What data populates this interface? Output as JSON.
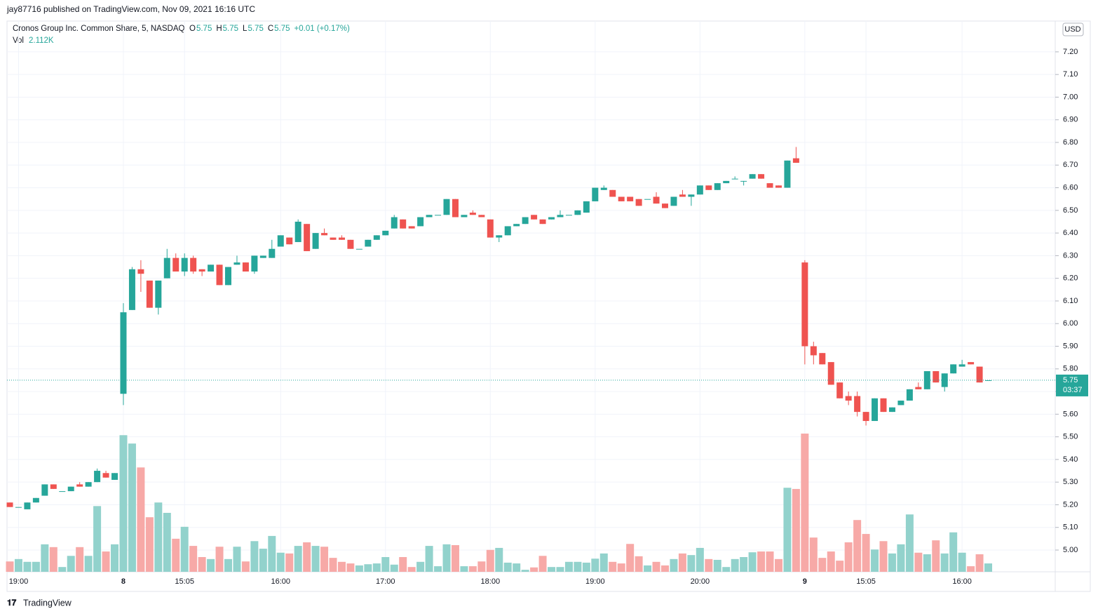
{
  "publisher": "jay87716 published on TradingView.com, Nov 09, 2021 16:16 UTC",
  "brand": "TradingView",
  "chart_data": {
    "type": "candlestick",
    "title": "Cronos Group Inc. Common Share, 5, NASDAQ",
    "ohlc_legend": [
      {
        "label": "O",
        "value": 5.75
      },
      {
        "label": "H",
        "value": 5.75
      },
      {
        "label": "L",
        "value": 5.75
      },
      {
        "label": "C",
        "value": 5.75
      }
    ],
    "change": "+0.01 (+0.17%)",
    "volume_legend": {
      "label": "Vol",
      "value": "2.112K"
    },
    "currency": "USD",
    "last_price": 5.75,
    "countdown": "03:37",
    "up_color": "#26a69a",
    "down_color": "#ef5350",
    "volume_up_color": "#92d2cc",
    "volume_down_color": "#f7a9a7",
    "grid": true,
    "categories": [
      null,
      "19:00",
      null,
      null,
      null,
      null,
      null,
      null,
      null,
      null,
      null,
      null,
      null,
      "8",
      null,
      null,
      null,
      null,
      null,
      null,
      "15:05",
      null,
      null,
      null,
      null,
      null,
      null,
      null,
      null,
      null,
      null,
      "16:00",
      null,
      null,
      null,
      null,
      null,
      null,
      null,
      null,
      null,
      null,
      null,
      "17:00",
      null,
      null,
      null,
      null,
      null,
      null,
      null,
      null,
      null,
      null,
      null,
      "18:00",
      null,
      null,
      null,
      null,
      null,
      null,
      null,
      null,
      null,
      null,
      null,
      "19:00",
      null,
      null,
      null,
      null,
      null,
      null,
      null,
      null,
      null,
      null,
      null,
      "20:00",
      null,
      null,
      null,
      null,
      null,
      null,
      null,
      null,
      null,
      null,
      null,
      "9",
      null,
      null,
      null,
      null,
      null,
      null,
      "15:05",
      null,
      null,
      null,
      null,
      null,
      null,
      null,
      null,
      null,
      null,
      "16:00",
      null,
      null,
      null
    ],
    "open": [
      5.21,
      5.19,
      5.18,
      5.21,
      5.24,
      5.29,
      5.26,
      5.26,
      5.29,
      5.28,
      5.3,
      5.34,
      5.31,
      5.69,
      6.06,
      6.24,
      6.19,
      6.07,
      6.2,
      6.29,
      6.23,
      6.29,
      6.24,
      6.23,
      6.26,
      6.17,
      6.26,
      6.27,
      6.23,
      6.29,
      6.29,
      6.34,
      6.38,
      6.36,
      6.44,
      6.33,
      6.4,
      6.38,
      6.38,
      6.37,
      6.33,
      6.34,
      6.37,
      6.39,
      6.42,
      6.46,
      6.43,
      6.43,
      6.47,
      6.48,
      6.48,
      6.55,
      6.47,
      6.49,
      6.48,
      6.46,
      6.38,
      6.39,
      6.43,
      6.44,
      6.48,
      6.46,
      6.46,
      6.47,
      6.48,
      6.48,
      6.49,
      6.54,
      6.59,
      6.59,
      6.56,
      6.56,
      6.55,
      6.55,
      6.56,
      6.53,
      6.52,
      6.57,
      6.56,
      6.57,
      6.61,
      6.59,
      6.62,
      6.64,
      6.63,
      6.64,
      6.66,
      6.62,
      6.61,
      6.6,
      6.73,
      6.27,
      5.9,
      5.87,
      5.83,
      5.74,
      5.68,
      5.68,
      5.61,
      5.57,
      5.67,
      5.61,
      5.64,
      5.66,
      5.72,
      5.71,
      5.79,
      5.72,
      5.78,
      5.81,
      5.83,
      5.81,
      5.75
    ],
    "high": [
      5.21,
      5.19,
      5.21,
      5.23,
      5.29,
      5.29,
      5.26,
      5.28,
      5.3,
      5.3,
      5.36,
      5.35,
      5.34,
      6.09,
      6.25,
      6.28,
      6.19,
      6.19,
      6.33,
      6.31,
      6.31,
      6.3,
      6.24,
      6.26,
      6.26,
      6.25,
      6.3,
      6.27,
      6.3,
      6.3,
      6.37,
      6.39,
      6.38,
      6.46,
      6.44,
      6.4,
      6.42,
      6.38,
      6.39,
      6.37,
      6.33,
      6.37,
      6.39,
      6.41,
      6.48,
      6.46,
      6.43,
      6.47,
      6.48,
      6.48,
      6.55,
      6.55,
      6.48,
      6.5,
      6.48,
      6.46,
      6.39,
      6.43,
      6.44,
      6.47,
      6.48,
      6.46,
      6.47,
      6.5,
      6.48,
      6.5,
      6.54,
      6.6,
      6.61,
      6.59,
      6.56,
      6.56,
      6.55,
      6.55,
      6.58,
      6.53,
      6.56,
      6.59,
      6.57,
      6.61,
      6.61,
      6.62,
      6.63,
      6.65,
      6.63,
      6.66,
      6.66,
      6.62,
      6.61,
      6.72,
      6.78,
      6.28,
      5.92,
      5.87,
      5.83,
      5.74,
      5.7,
      5.7,
      5.61,
      5.67,
      5.67,
      5.63,
      5.66,
      5.71,
      5.74,
      5.79,
      5.79,
      5.78,
      5.82,
      5.84,
      5.83,
      5.81,
      5.75
    ],
    "low": [
      5.19,
      5.19,
      5.18,
      5.21,
      5.24,
      5.27,
      5.26,
      5.26,
      5.28,
      5.28,
      5.3,
      5.32,
      5.31,
      5.64,
      6.06,
      6.14,
      6.07,
      6.04,
      6.2,
      6.23,
      6.21,
      6.22,
      6.21,
      6.23,
      6.17,
      6.17,
      6.26,
      6.23,
      6.22,
      6.29,
      6.29,
      6.34,
      6.35,
      6.36,
      6.32,
      6.33,
      6.39,
      6.37,
      6.37,
      6.33,
      6.33,
      6.34,
      6.37,
      6.39,
      6.42,
      6.42,
      6.42,
      6.43,
      6.47,
      6.48,
      6.48,
      6.47,
      6.47,
      6.48,
      6.47,
      6.38,
      6.36,
      6.39,
      6.43,
      6.44,
      6.46,
      6.44,
      6.46,
      6.47,
      6.48,
      6.48,
      6.49,
      6.54,
      6.59,
      6.56,
      6.54,
      6.54,
      6.52,
      6.55,
      6.53,
      6.51,
      6.52,
      6.56,
      6.52,
      6.57,
      6.59,
      6.59,
      6.62,
      6.64,
      6.61,
      6.64,
      6.64,
      6.6,
      6.6,
      6.6,
      6.71,
      5.82,
      5.82,
      5.82,
      5.73,
      5.67,
      5.64,
      5.59,
      5.55,
      5.57,
      5.61,
      5.61,
      5.64,
      5.66,
      5.71,
      5.71,
      5.74,
      5.7,
      5.78,
      5.81,
      5.82,
      5.74,
      5.75
    ],
    "close": [
      5.19,
      5.19,
      5.21,
      5.23,
      5.29,
      5.27,
      5.26,
      5.28,
      5.28,
      5.3,
      5.35,
      5.32,
      5.34,
      6.05,
      6.24,
      6.22,
      6.07,
      6.19,
      6.29,
      6.23,
      6.29,
      6.23,
      6.23,
      6.26,
      6.17,
      6.25,
      6.27,
      6.23,
      6.3,
      6.3,
      6.33,
      6.39,
      6.35,
      6.45,
      6.32,
      6.4,
      6.39,
      6.37,
      6.37,
      6.33,
      6.33,
      6.37,
      6.39,
      6.41,
      6.47,
      6.42,
      6.42,
      6.47,
      6.48,
      6.48,
      6.55,
      6.47,
      6.48,
      6.48,
      6.47,
      6.38,
      6.39,
      6.43,
      6.44,
      6.47,
      6.46,
      6.44,
      6.47,
      6.48,
      6.48,
      6.5,
      6.54,
      6.6,
      6.6,
      6.56,
      6.54,
      6.54,
      6.52,
      6.55,
      6.53,
      6.51,
      6.56,
      6.56,
      6.57,
      6.61,
      6.59,
      6.62,
      6.63,
      6.64,
      6.63,
      6.66,
      6.64,
      6.6,
      6.6,
      6.72,
      6.71,
      5.9,
      5.86,
      5.82,
      5.73,
      5.67,
      5.66,
      5.61,
      5.57,
      5.67,
      5.61,
      5.63,
      5.66,
      5.71,
      5.71,
      5.79,
      5.74,
      5.78,
      5.82,
      5.82,
      5.82,
      5.74,
      5.75
    ],
    "volume": [
      2.6,
      3.2,
      2.5,
      2.5,
      6.9,
      6.2,
      1.2,
      4.0,
      6.2,
      4.0,
      16.5,
      5.1,
      6.9,
      34.3,
      32.2,
      26.2,
      13.7,
      17.4,
      14.8,
      8.3,
      11.3,
      6.5,
      3.7,
      3.2,
      6.3,
      3.2,
      6.3,
      2.6,
      7.7,
      5.8,
      9.0,
      4.8,
      4.6,
      6.5,
      7.4,
      6.5,
      6.3,
      3.5,
      2.5,
      2.1,
      1.6,
      1.9,
      2.1,
      3.7,
      1.8,
      3.7,
      1.2,
      2.5,
      6.5,
      1.4,
      6.9,
      6.7,
      1.4,
      1.4,
      2.6,
      5.5,
      6.0,
      2.3,
      2.1,
      0.5,
      1.1,
      4.0,
      1.2,
      1.2,
      2.5,
      2.5,
      2.3,
      3.3,
      4.6,
      2.5,
      2.1,
      7.0,
      3.9,
      1.6,
      2.5,
      1.6,
      3.2,
      4.6,
      4.2,
      6.0,
      3.2,
      3.0,
      1.2,
      3.2,
      3.7,
      4.9,
      5.1,
      5.1,
      3.2,
      21.1,
      20.8,
      34.7,
      8.6,
      3.5,
      5.1,
      2.8,
      7.4,
      13.0,
      9.5,
      5.6,
      7.7,
      4.6,
      6.9,
      14.4,
      4.8,
      4.4,
      7.9,
      4.6,
      9.9,
      4.8,
      1.4,
      4.4,
      2.1
    ],
    "ylim": [
      4.904,
      7.336
    ],
    "yticks": [
      {
        "value": 5.0,
        "label": "5.00"
      },
      {
        "value": 5.1,
        "label": "5.10"
      },
      {
        "value": 5.2,
        "label": "5.20"
      },
      {
        "value": 5.3,
        "label": "5.30"
      },
      {
        "value": 5.4,
        "label": "5.40"
      },
      {
        "value": 5.5,
        "label": "5.50"
      },
      {
        "value": 5.6,
        "label": "5.60"
      },
      {
        "value": 5.7,
        "label": "5.70"
      },
      {
        "value": 5.8,
        "label": "5.80"
      },
      {
        "value": 5.9,
        "label": "5.90"
      },
      {
        "value": 6.0,
        "label": "6.00"
      },
      {
        "value": 6.1,
        "label": "6.10"
      },
      {
        "value": 6.2,
        "label": "6.20"
      },
      {
        "value": 6.3,
        "label": "6.30"
      },
      {
        "value": 6.4,
        "label": "6.40"
      },
      {
        "value": 6.5,
        "label": "6.50"
      },
      {
        "value": 6.6,
        "label": "6.60"
      },
      {
        "value": 6.7,
        "label": "6.70"
      },
      {
        "value": 6.8,
        "label": "6.80"
      },
      {
        "value": 6.9,
        "label": "6.90"
      },
      {
        "value": 7.0,
        "label": "7.00"
      },
      {
        "value": 7.1,
        "label": "7.10"
      },
      {
        "value": 7.2,
        "label": "7.20"
      }
    ]
  }
}
